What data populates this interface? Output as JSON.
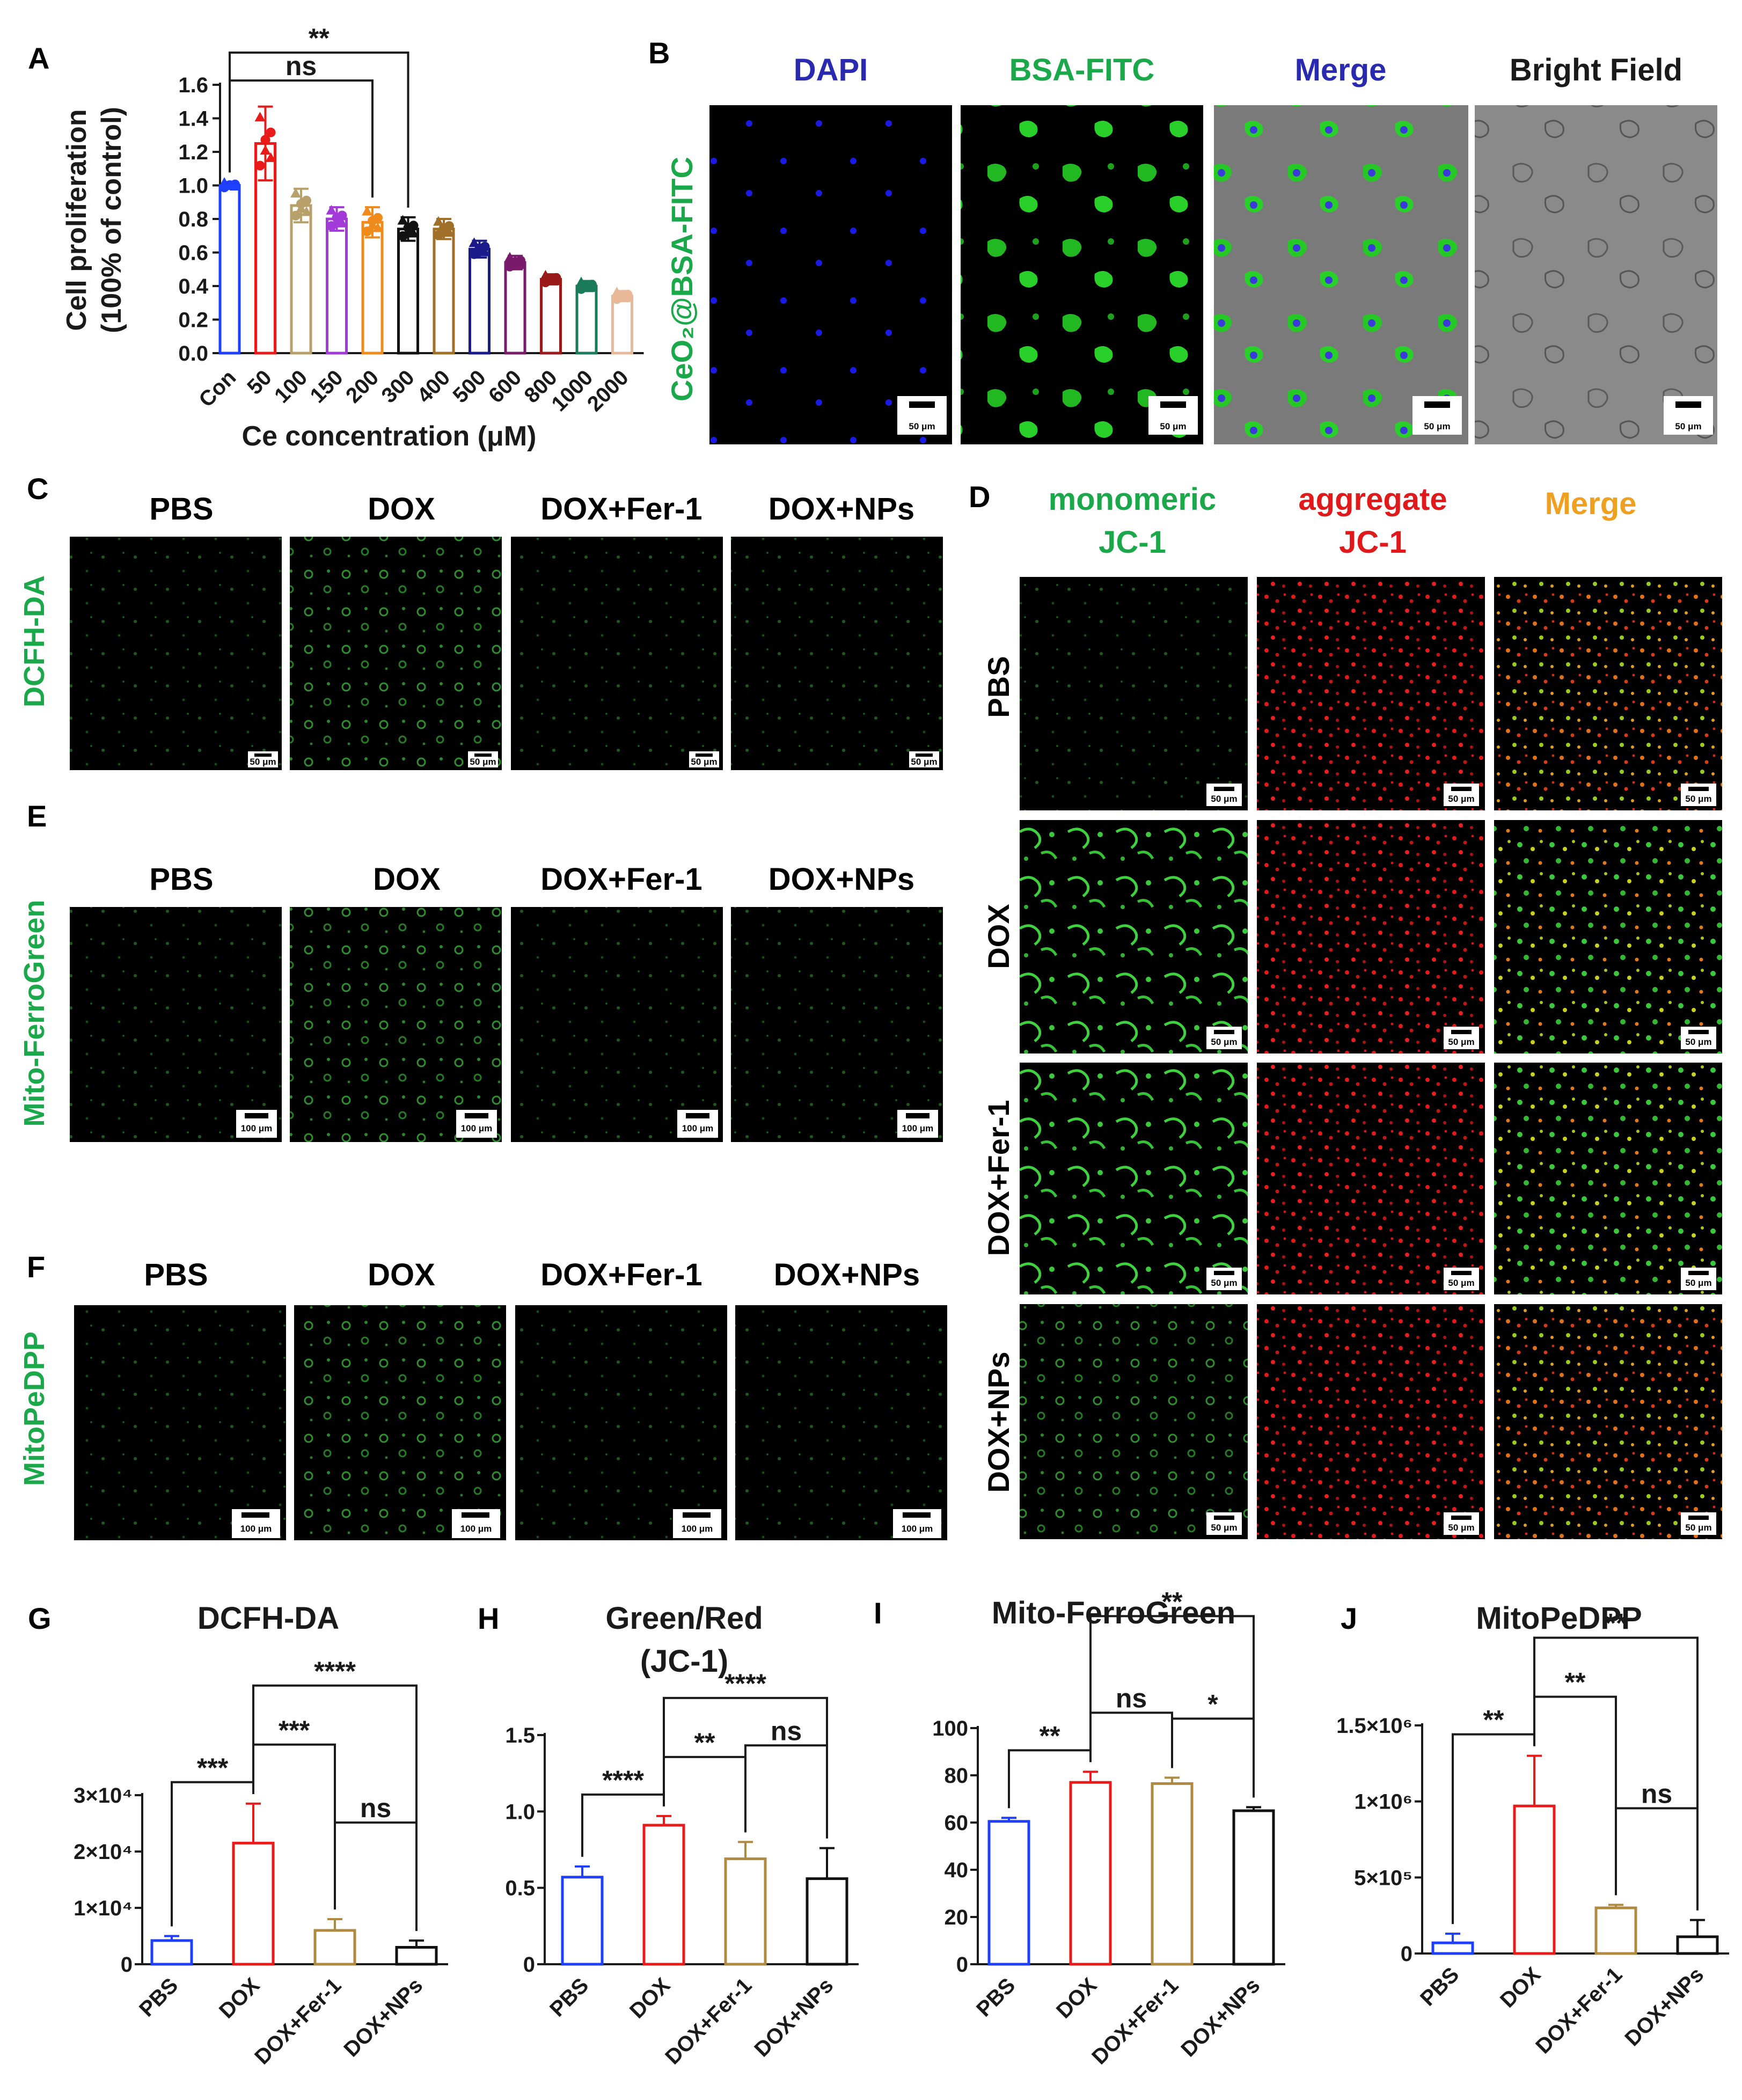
{
  "panels": {
    "A": "A",
    "B": "B",
    "C": "C",
    "D": "D",
    "E": "E",
    "F": "F",
    "G": "G",
    "H": "H",
    "I": "I",
    "J": "J"
  },
  "panel_b": {
    "columns": [
      "DAPI",
      "BSA-FITC",
      "Merge",
      "Bright Field"
    ],
    "row_label": "CeO₂@BSA-FITC",
    "scale": "50 μm",
    "colors": {
      "DAPI": "#2a2ab0",
      "BSA-FITC": "#1aa84a",
      "Merge": "#2a2ab0",
      "Bright Field": "#1a1a1a"
    }
  },
  "panel_c": {
    "columns": [
      "PBS",
      "DOX",
      "DOX+Fer-1",
      "DOX+NPs"
    ],
    "row_label": "DCFH-DA",
    "scale": "50 μm"
  },
  "panel_e": {
    "columns": [
      "PBS",
      "DOX",
      "DOX+Fer-1",
      "DOX+NPs"
    ],
    "row_label": "Mito-FerroGreen",
    "scale": "100 μm"
  },
  "panel_f": {
    "columns": [
      "PBS",
      "DOX",
      "DOX+Fer-1",
      "DOX+NPs"
    ],
    "row_label": "MitoPeDPP",
    "scale": "100 μm"
  },
  "panel_d": {
    "col1_line1": "monomeric",
    "col1_line2": "JC-1",
    "col2_line1": "aggregate",
    "col2_line2": "JC-1",
    "col3": "Merge",
    "rows": [
      "PBS",
      "DOX",
      "DOX+Fer-1",
      "DOX+NPs"
    ],
    "scale": "50 μm"
  },
  "chart_data": [
    {
      "id": "A",
      "type": "bar",
      "ylabel": "Cell proliferation",
      "ylabel2": "(100% of control)",
      "xlabel": "Ce concentration (μM)",
      "categories": [
        "Con",
        "50",
        "100",
        "150",
        "200",
        "300",
        "400",
        "500",
        "600",
        "800",
        "1000",
        "2000"
      ],
      "values": [
        1.0,
        1.25,
        0.88,
        0.8,
        0.78,
        0.74,
        0.74,
        0.62,
        0.54,
        0.44,
        0.4,
        0.34
      ],
      "errors": [
        0.02,
        0.22,
        0.1,
        0.07,
        0.09,
        0.07,
        0.06,
        0.05,
        0.04,
        0.03,
        0.03,
        0.03
      ],
      "colors": [
        "#1f3fff",
        "#e81a1a",
        "#b8a06a",
        "#a23ad8",
        "#f08a1a",
        "#111111",
        "#a0702a",
        "#1a1a8a",
        "#7a1a6a",
        "#9a1a1a",
        "#1a7a5a",
        "#e8b898"
      ],
      "yticks": [
        "0.0",
        "0.2",
        "0.4",
        "0.6",
        "0.8",
        "1.0",
        "1.2",
        "1.4",
        "1.6"
      ],
      "ylim": [
        0,
        1.6
      ],
      "sig": [
        {
          "from": 0,
          "to": 4,
          "label": "ns"
        },
        {
          "from": 0,
          "to": 5,
          "label": "**"
        }
      ]
    },
    {
      "id": "G",
      "type": "bar",
      "title": "DCFH-DA",
      "categories": [
        "PBS",
        "DOX",
        "DOX+Fer-1",
        "DOX+NPs"
      ],
      "values": [
        4200,
        21500,
        6000,
        3000
      ],
      "errors": [
        800,
        7000,
        2000,
        1200
      ],
      "colors": [
        "#1f3fff",
        "#e81a1a",
        "#b08a40",
        "#111111"
      ],
      "yticks": [
        {
          "v": 0,
          "t": "0"
        },
        {
          "v": 10000,
          "t": "1×10⁴"
        },
        {
          "v": 20000,
          "t": "2×10⁴"
        },
        {
          "v": 30000,
          "t": "3×10⁴"
        }
      ],
      "ylim": [
        0,
        30000
      ],
      "sig": [
        {
          "from": 0,
          "to": 1,
          "label": "***"
        },
        {
          "from": 1,
          "to": 2,
          "label": "***"
        },
        {
          "from": 1,
          "to": 3,
          "label": "****"
        },
        {
          "from": 2,
          "to": 3,
          "label": "ns"
        }
      ]
    },
    {
      "id": "H",
      "type": "bar",
      "title": "Green/Red",
      "title2": "(JC-1)",
      "categories": [
        "PBS",
        "DOX",
        "DOX+Fer-1",
        "DOX+NPs"
      ],
      "values": [
        0.57,
        0.91,
        0.69,
        0.56
      ],
      "errors": [
        0.07,
        0.06,
        0.11,
        0.2
      ],
      "colors": [
        "#1f3fff",
        "#e81a1a",
        "#b08a40",
        "#111111"
      ],
      "yticks": [
        {
          "v": 0,
          "t": "0"
        },
        {
          "v": 0.5,
          "t": "0.5"
        },
        {
          "v": 1.0,
          "t": "1.0"
        },
        {
          "v": 1.5,
          "t": "1.5"
        }
      ],
      "ylim": [
        0,
        1.5
      ],
      "sig": [
        {
          "from": 0,
          "to": 1,
          "label": "****"
        },
        {
          "from": 1,
          "to": 2,
          "label": "**"
        },
        {
          "from": 1,
          "to": 3,
          "label": "****"
        },
        {
          "from": 2,
          "to": 3,
          "label": "ns"
        }
      ]
    },
    {
      "id": "I",
      "type": "bar",
      "title": "Mito-FerroGreen",
      "categories": [
        "PBS",
        "DOX",
        "DOX+Fer-1",
        "DOX+NPs"
      ],
      "values": [
        60.5,
        77,
        76.5,
        65
      ],
      "errors": [
        1.5,
        4.5,
        2.5,
        1.5
      ],
      "colors": [
        "#1f3fff",
        "#e81a1a",
        "#b08a40",
        "#111111"
      ],
      "yticks": [
        {
          "v": 0,
          "t": "0"
        },
        {
          "v": 20,
          "t": "20"
        },
        {
          "v": 40,
          "t": "40"
        },
        {
          "v": 60,
          "t": "60"
        },
        {
          "v": 80,
          "t": "80"
        },
        {
          "v": 100,
          "t": "100"
        }
      ],
      "ylim": [
        0,
        100
      ],
      "sig": [
        {
          "from": 0,
          "to": 1,
          "label": "**"
        },
        {
          "from": 1,
          "to": 2,
          "label": "ns"
        },
        {
          "from": 2,
          "to": 3,
          "label": "*"
        },
        {
          "from": 1,
          "to": 3,
          "label": "**"
        }
      ]
    },
    {
      "id": "J",
      "type": "bar",
      "title": "MitoPeDPP",
      "categories": [
        "PBS",
        "DOX",
        "DOX+Fer-1",
        "DOX+NPs"
      ],
      "values": [
        70000,
        970000,
        300000,
        110000
      ],
      "errors": [
        60000,
        330000,
        20000,
        110000
      ],
      "colors": [
        "#1f3fff",
        "#e81a1a",
        "#b08a40",
        "#111111"
      ],
      "yticks": [
        {
          "v": 0,
          "t": "0"
        },
        {
          "v": 500000,
          "t": "5×10⁵"
        },
        {
          "v": 1000000,
          "t": "1×10⁶"
        },
        {
          "v": 1500000,
          "t": "1.5×10⁶"
        }
      ],
      "ylim": [
        0,
        1500000
      ],
      "sig": [
        {
          "from": 0,
          "to": 1,
          "label": "**"
        },
        {
          "from": 1,
          "to": 2,
          "label": "**"
        },
        {
          "from": 1,
          "to": 3,
          "label": "**"
        },
        {
          "from": 2,
          "to": 3,
          "label": "ns"
        }
      ]
    }
  ]
}
